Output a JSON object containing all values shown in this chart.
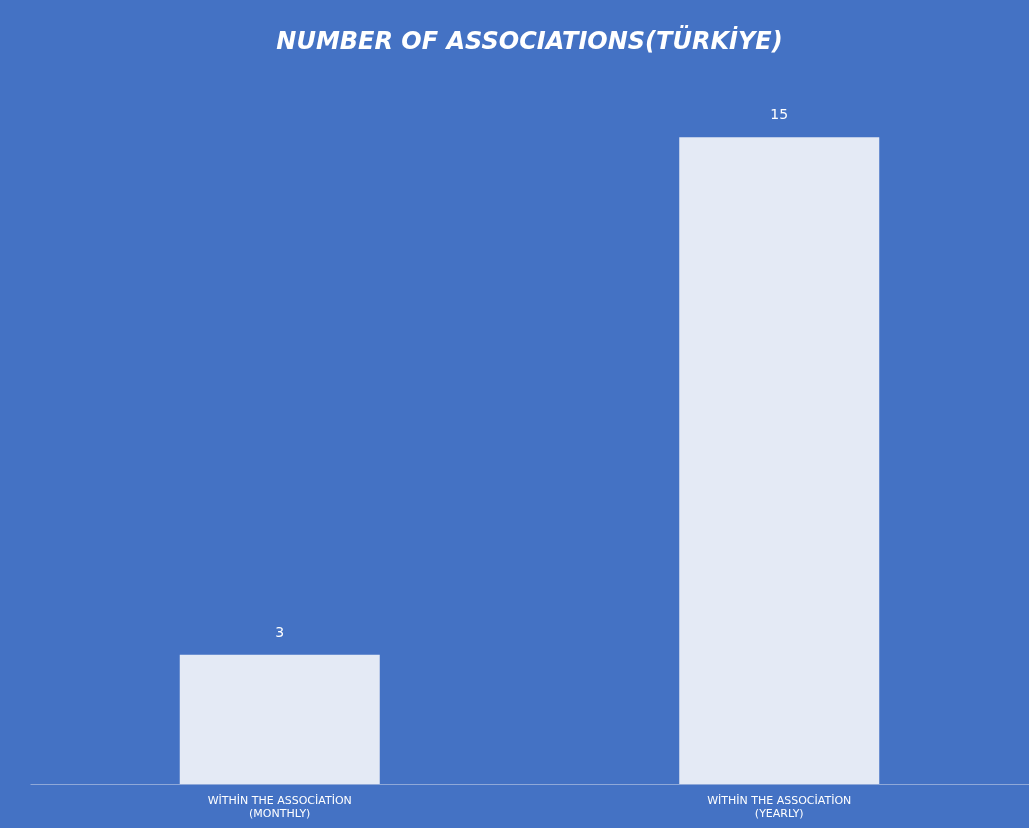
{
  "chart_data": {
    "type": "bar",
    "title": "NUMBER OF ASSOCIATIONS(TÜRKİYE)",
    "categories": [
      "WİTHİN THE ASSOCİATİON (MONTHLY)",
      "WİTHİN THE ASSOCİATİON (YEARLY)"
    ],
    "values": [
      3,
      15
    ],
    "color": "#e4eaf5",
    "data_labels": true
  }
}
